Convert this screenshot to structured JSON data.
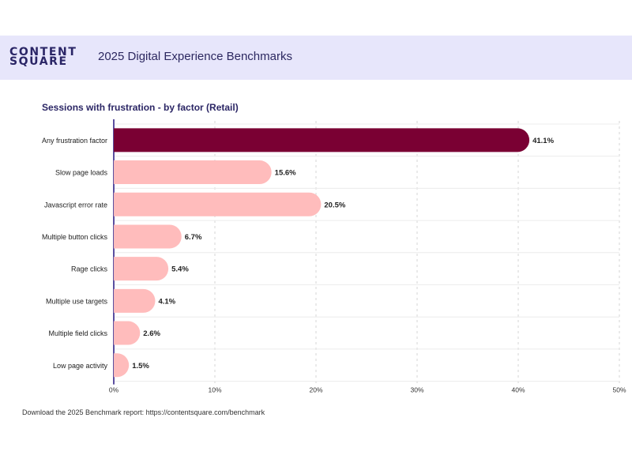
{
  "header": {
    "logo_line1": "CONTENT",
    "logo_line2": "SQUARE",
    "title": "2025 Digital Experience Benchmarks"
  },
  "footer": {
    "text": "Download the 2025 Benchmark report: https://contentsquare.com/benchmark"
  },
  "colors": {
    "header_bg": "#e7e6fb",
    "brand_text": "#2a2566",
    "highlight_bar": "#7a0033",
    "bar": "#ffbcbc",
    "axis": "#5b4fa0"
  },
  "chart_data": {
    "type": "bar",
    "orientation": "horizontal",
    "title": "Sessions with frustration - by factor (Retail)",
    "xlabel": "",
    "ylabel": "",
    "xlim": [
      0,
      50
    ],
    "grid": true,
    "categories": [
      "Any frustration factor",
      "Slow page loads",
      "Javascript error rate",
      "Multiple button clicks",
      "Rage clicks",
      "Multiple use targets",
      "Multiple field clicks",
      "Low page activity"
    ],
    "values": [
      41.1,
      15.6,
      20.5,
      6.7,
      5.4,
      4.1,
      2.6,
      1.5
    ],
    "labels": [
      "41.1%",
      "15.6%",
      "20.5%",
      "6.7%",
      "5.4%",
      "4.1%",
      "2.6%",
      "1.5%"
    ],
    "highlight_index": 0,
    "x_ticks": [
      0,
      10,
      20,
      30,
      40,
      50
    ],
    "x_tick_labels": [
      "0%",
      "10%",
      "20%",
      "30%",
      "40%",
      "50%"
    ]
  }
}
